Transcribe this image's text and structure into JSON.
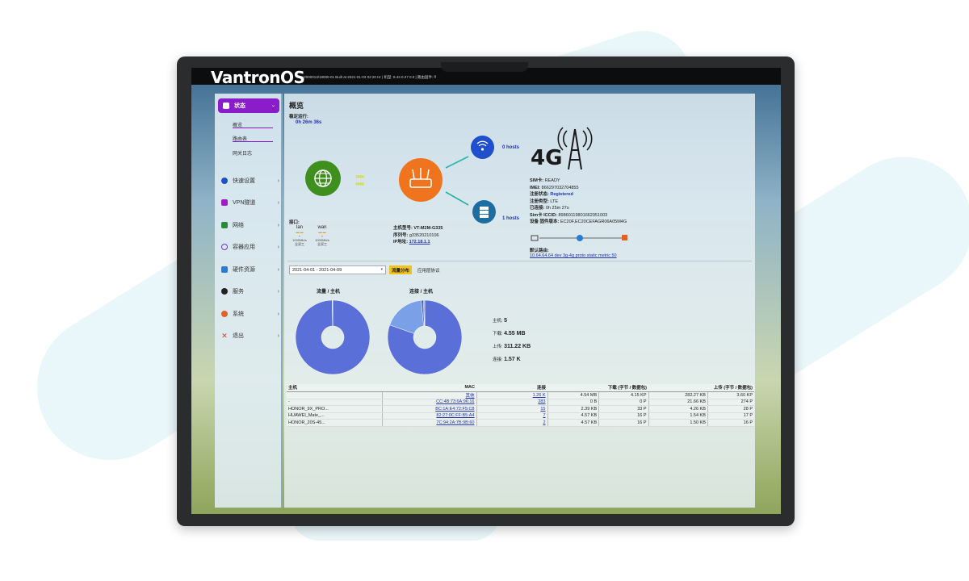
{
  "app": {
    "logo": "VantronOS",
    "build_info": "v2000013/19000-01 Built at 2021-01-03 02:20 Hr | 机型: 8.42.0.27 0.0 | 路由固件: ff"
  },
  "sidebar": {
    "active": {
      "label": "状态",
      "icon": "database-icon"
    },
    "subitems": [
      "概览",
      "路由表",
      "网关日志"
    ],
    "items": [
      {
        "label": "快速设置",
        "icon": "gear-icon",
        "color": "#1f4fcc"
      },
      {
        "label": "VPN隧道",
        "icon": "network-icon",
        "color": "#a01cc9"
      },
      {
        "label": "网络",
        "icon": "sitemap-icon",
        "color": "#2a8a3a"
      },
      {
        "label": "容器应用",
        "icon": "spinner-icon",
        "color": "#6a3ad6"
      },
      {
        "label": "硬件资源",
        "icon": "grid-icon",
        "color": "#2a7ad6"
      },
      {
        "label": "服务",
        "icon": "cog-icon",
        "color": "#222222"
      },
      {
        "label": "系统",
        "icon": "settings-icon",
        "color": "#e0612a"
      },
      {
        "label": "退出",
        "icon": "close-icon",
        "color": "#d03a2a"
      }
    ]
  },
  "main": {
    "title": "概览",
    "uptime_label": "稳定运行:",
    "uptime_value": "0h 26m 36s",
    "wifi_hosts": "0 hosts",
    "lan_hosts": "1 hosts",
    "ports_label": "接口:",
    "ports": [
      {
        "name": "lan",
        "speed": "1000Mb/s",
        "duplex": "全双工"
      },
      {
        "name": "wan",
        "speed": "1000Mb/s",
        "duplex": "全双工"
      }
    ],
    "device": {
      "model_label": "主机型号:",
      "model": "VT-M2M-G335",
      "serial_label": "序列号:",
      "serial": "g33520210106",
      "ip_label": "IP地址:",
      "ip": "172.18.1.1"
    },
    "cell": {
      "badge": "4G",
      "sim_label": "SIM卡:",
      "sim": "READY",
      "imei_label": "IMEI:",
      "imei": "866297032704855",
      "reg_label": "注册状态:",
      "reg": "Registered",
      "type_label": "注册类型:",
      "type": "LTE",
      "connected_label": "已连接:",
      "connected": "0h 25m 27s",
      "iccid_label": "Sim卡 ICCID:",
      "iccid": "89860119801662951003",
      "fw_label": "设备 固件版本:",
      "fw": "EC20F,EC20CEFAGR06A05M4G",
      "route_label": "默认路由:",
      "route": "10.64.64.64 dev 3g-4g proto static metric 50"
    },
    "filter": {
      "date_range": "2021-04-01 - 2021-04-09",
      "tab_active": "流量分布",
      "tab_other": "应用层协议"
    },
    "donut1_title": "流量 / 主机",
    "donut2_title": "连接 / 主机",
    "stats": {
      "hosts_label": "主机:",
      "hosts": "5",
      "down_label": "下载:",
      "down": "4.55 MB",
      "up_label": "上传:",
      "up": "311.22 KB",
      "conn_label": "连接:",
      "conn": "1.57 K"
    },
    "table": {
      "headers": [
        "主机",
        "MAC",
        "连接",
        "下载 (字节 / 数据包)",
        "",
        "上传 (字节 / 数据包)",
        ""
      ],
      "rows": [
        [
          "",
          "其他",
          "1.26 K",
          "4.54 MB",
          "4.15 KP",
          "282.27 KB",
          "3.60 KP"
        ],
        [
          "-",
          "CC:4B:73:6A:96:16",
          "283",
          "0 B",
          "0 P",
          "21.66 KB",
          "274 P"
        ],
        [
          "HONOR_9X_PRO...",
          "BC:1A:E4:72:F5:C8",
          "15",
          "2.39 KB",
          "33 P",
          "4.26 KB",
          "28 P"
        ],
        [
          "HUAWEI_Mate_...",
          "82:27:0C:FF:B5:A4",
          "7",
          "4.57 KB",
          "16 P",
          "1.54 KB",
          "17 P"
        ],
        [
          "HONOR_20S-45...",
          "7C:94:2A:7B:9B:60",
          "2",
          "4.57 KB",
          "16 P",
          "1.50 KB",
          "16 P"
        ]
      ]
    }
  },
  "chart_data": [
    {
      "type": "pie",
      "title": "流量 / 主机",
      "labels": [
        "其他",
        "HONOR_9X_PRO...",
        "HUAWEI_Mate_...",
        "HONOR_20S-45...",
        "-"
      ],
      "values": [
        4.54,
        0.002,
        0.004,
        0.004,
        0
      ],
      "colors": [
        "#5b6fd8",
        "#7a8de2",
        "#4f62c8",
        "#3f52b8",
        "#2d3fa0"
      ]
    },
    {
      "type": "pie",
      "title": "连接 / 主机",
      "labels": [
        "其他",
        "-",
        "HONOR_9X_PRO...",
        "HUAWEI_Mate_...",
        "HONOR_20S-45..."
      ],
      "values": [
        1260,
        283,
        15,
        7,
        2
      ],
      "colors": [
        "#5b6fd8",
        "#7aa0e8",
        "#4f62c8",
        "#3f52b8",
        "#2d3fa0"
      ]
    }
  ]
}
